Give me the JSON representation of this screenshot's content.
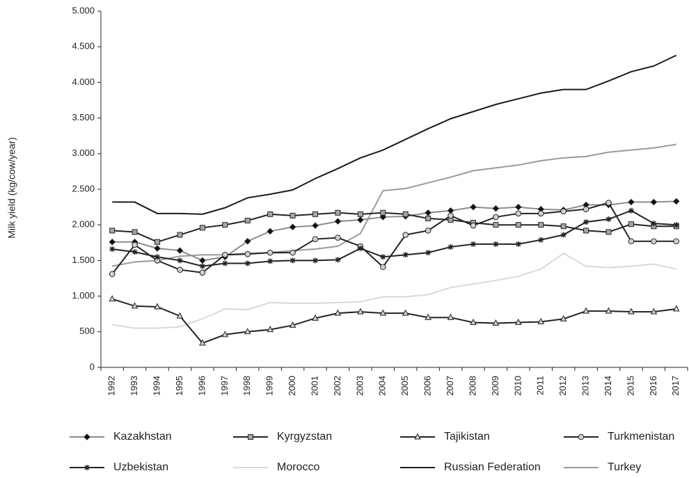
{
  "chart_data": {
    "type": "line",
    "y_label": "Milk yield (kg/cow/year)",
    "categories": [
      "1992",
      "1993",
      "1994",
      "1995",
      "1996",
      "1997",
      "1998",
      "1999",
      "2000",
      "2001",
      "2002",
      "2003",
      "2004",
      "2005",
      "2006",
      "2007",
      "2008",
      "2009",
      "2010",
      "2011",
      "2012",
      "2013",
      "2014",
      "2015",
      "2016",
      "2017"
    ],
    "ylim": [
      0,
      5000
    ],
    "yticks": [
      0,
      500,
      {
        "value": 1000,
        "label": "1.000"
      },
      {
        "value": 1500,
        "label": "1.500"
      },
      {
        "value": 2000,
        "label": "2.000"
      },
      {
        "value": 2500,
        "label": "2.500"
      },
      {
        "value": 3000,
        "label": "3.000"
      },
      {
        "value": 3500,
        "label": "3.500"
      },
      {
        "value": 4000,
        "label": "4.000"
      },
      {
        "value": 4500,
        "label": "4.500"
      },
      {
        "value": 5000,
        "label": "5.000"
      }
    ],
    "grid": false,
    "legend": "bottom",
    "series": [
      {
        "name": "Kazakhstan",
        "color": "#8c8c8c",
        "marker": "diamond",
        "marker_color": "#111111",
        "values": [
          1760,
          1760,
          1670,
          1640,
          1500,
          1550,
          1770,
          1910,
          1970,
          1990,
          2050,
          2070,
          2110,
          2120,
          2170,
          2200,
          2250,
          2230,
          2250,
          2220,
          2210,
          2280,
          2280,
          2320,
          2320,
          2330
        ]
      },
      {
        "name": "Kyrgyzstan",
        "color": "#222222",
        "marker": "square",
        "marker_color": "#a6a6a6",
        "values": [
          1920,
          1900,
          1760,
          1860,
          1960,
          2000,
          2060,
          2150,
          2130,
          2150,
          2170,
          2150,
          2170,
          2150,
          2090,
          2070,
          2030,
          2000,
          2000,
          2000,
          1980,
          1920,
          1900,
          2010,
          1980,
          1980
        ]
      },
      {
        "name": "Tajikistan",
        "color": "#222222",
        "marker": "triangle",
        "marker_color": "#d0d0d0",
        "values": [
          960,
          860,
          850,
          720,
          340,
          460,
          500,
          530,
          590,
          690,
          760,
          780,
          760,
          760,
          700,
          700,
          630,
          620,
          630,
          640,
          680,
          790,
          790,
          780,
          780,
          820
        ]
      },
      {
        "name": "Turkmenistan",
        "color": "#222222",
        "marker": "circle",
        "marker_color": "#d0d0d0",
        "values": [
          1310,
          1720,
          1500,
          1370,
          1330,
          1580,
          1590,
          1610,
          1610,
          1800,
          1820,
          1700,
          1410,
          1860,
          1920,
          2130,
          1990,
          2110,
          2160,
          2160,
          2190,
          2220,
          2310,
          1770,
          1770,
          1770
        ]
      },
      {
        "name": "Uzbekistan",
        "color": "#222222",
        "marker": "star",
        "marker_color": "#222222",
        "values": [
          1660,
          1620,
          1550,
          1500,
          1420,
          1460,
          1460,
          1490,
          1500,
          1500,
          1510,
          1670,
          1550,
          1580,
          1610,
          1690,
          1730,
          1730,
          1730,
          1790,
          1860,
          2040,
          2080,
          2200,
          2020,
          2000
        ]
      },
      {
        "name": "Morocco",
        "color": "#d9d9d9",
        "marker": "none",
        "marker_color": "#d9d9d9",
        "values": [
          600,
          550,
          550,
          570,
          680,
          820,
          810,
          910,
          900,
          900,
          910,
          920,
          990,
          990,
          1020,
          1120,
          1170,
          1220,
          1280,
          1380,
          1600,
          1420,
          1400,
          1420,
          1450,
          1380
        ]
      },
      {
        "name": "Russian Federation",
        "color": "#1a1a1a",
        "marker": "none",
        "marker_color": "#1a1a1a",
        "values": [
          2320,
          2320,
          2160,
          2160,
          2150,
          2240,
          2380,
          2430,
          2490,
          2650,
          2790,
          2940,
          3050,
          3200,
          3350,
          3490,
          3590,
          3690,
          3770,
          3850,
          3900,
          3900,
          4020,
          4150,
          4230,
          4380
        ]
      },
      {
        "name": "Turkey",
        "color": "#9a9a9a",
        "marker": "none",
        "marker_color": "#9a9a9a",
        "values": [
          1420,
          1480,
          1500,
          1560,
          1580,
          1580,
          1600,
          1610,
          1640,
          1660,
          1700,
          1880,
          2480,
          2510,
          2590,
          2670,
          2760,
          2800,
          2840,
          2900,
          2940,
          2960,
          3020,
          3050,
          3080,
          3130
        ]
      }
    ]
  }
}
